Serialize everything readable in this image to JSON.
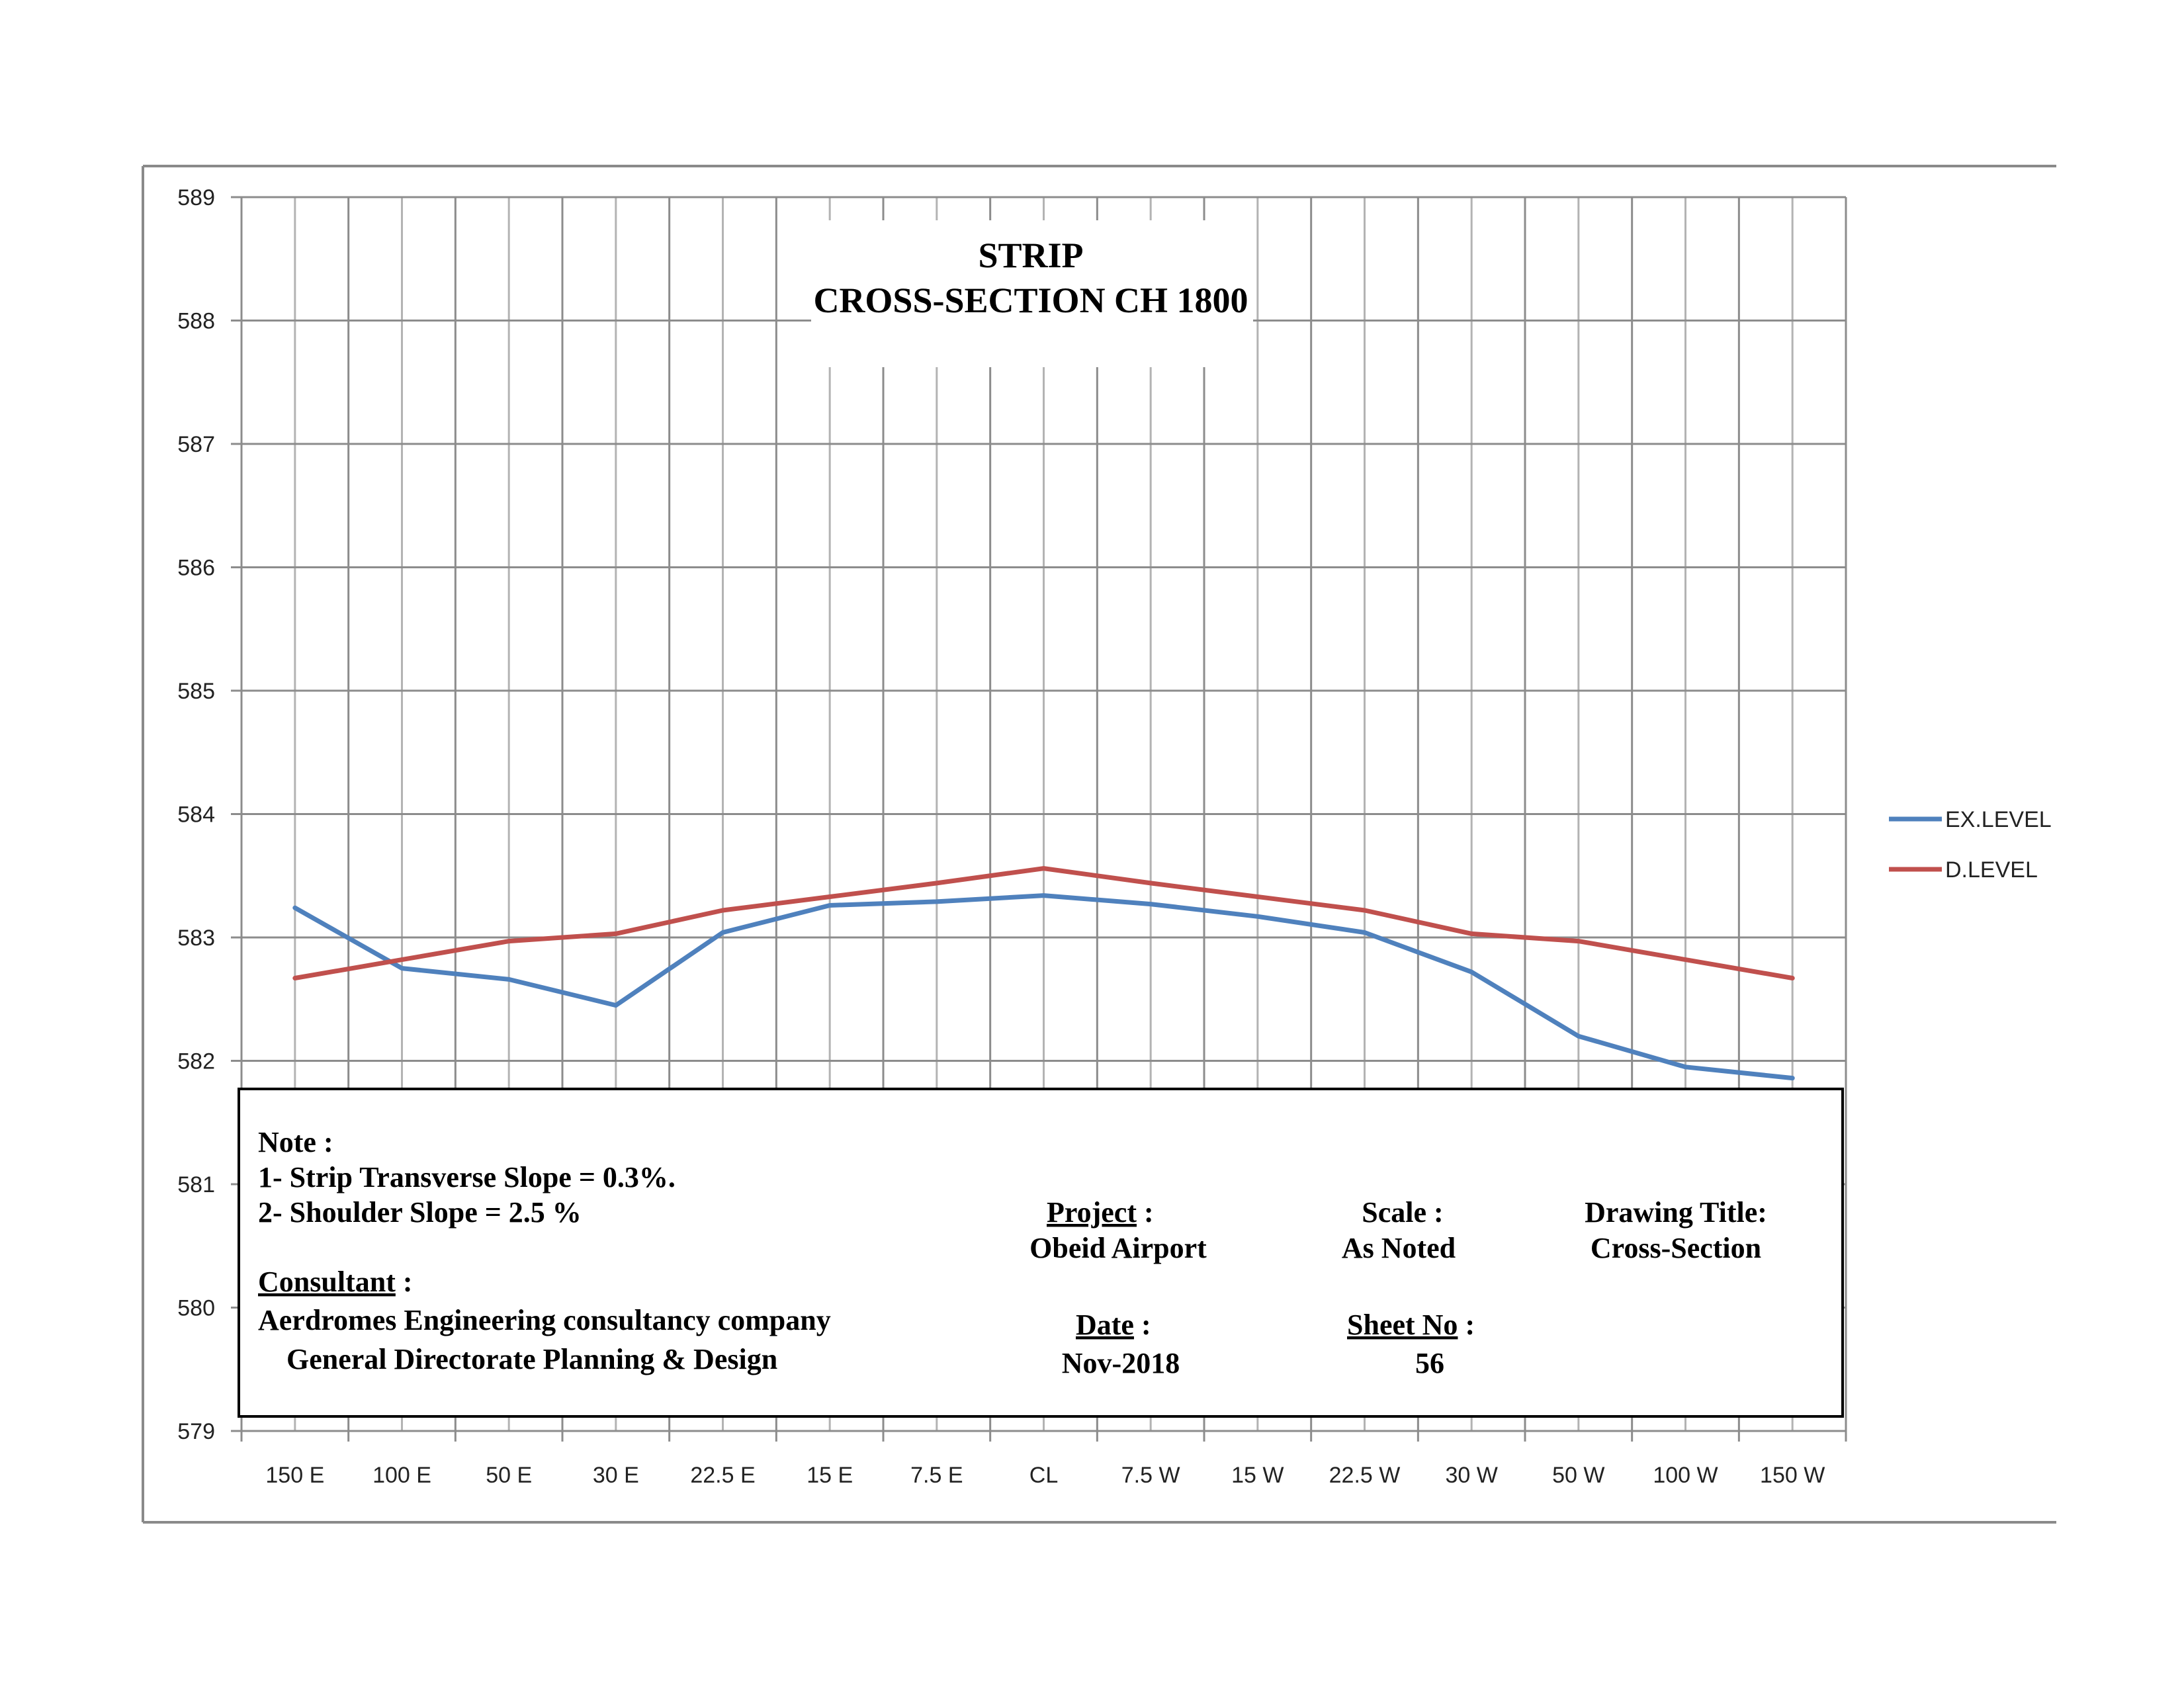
{
  "chart_data": {
    "type": "line",
    "title": [
      "STRIP",
      "CROSS-SECTION CH 1800"
    ],
    "categories": [
      "150 E",
      "100 E",
      "50 E",
      "30 E",
      "22.5 E",
      "15 E",
      "7.5 E",
      "CL",
      "7.5 W",
      "15 W",
      "22.5 W",
      "30 W",
      "50 W",
      "100 W",
      "150 W"
    ],
    "series": [
      {
        "name": "EX.LEVEL",
        "color": "#4F81BD",
        "values": [
          583.24,
          582.75,
          582.66,
          582.45,
          583.04,
          583.26,
          583.29,
          583.34,
          583.27,
          583.17,
          583.04,
          582.72,
          582.2,
          581.95,
          581.86
        ]
      },
      {
        "name": "D.LEVEL",
        "color": "#C0504D",
        "values": [
          582.67,
          582.82,
          582.97,
          583.03,
          583.22,
          583.33,
          583.44,
          583.56,
          583.44,
          583.33,
          583.22,
          583.03,
          582.97,
          582.82,
          582.67
        ]
      }
    ],
    "ylim": [
      579,
      589
    ],
    "yticks": [
      "589",
      "588",
      "587",
      "586",
      "585",
      "584",
      "583",
      "582",
      "581",
      "580",
      "579"
    ],
    "grid": true,
    "legend_position": "right"
  },
  "title_block": {
    "note_label": "Note :",
    "note_1": "1- Strip Transverse Slope = 0.3%.",
    "note_2": "2- Shoulder Slope = 2.5 %",
    "consultant_label": "Consultant",
    "consultant_colon": " :",
    "consultant_line1": "Aerdromes Engineering consultancy company",
    "consultant_line2": "General Directorate Planning & Design",
    "project_label": "Project",
    "project_colon": " :",
    "project_value": "Obeid Airport",
    "scale_label": "Scale :",
    "scale_value": "As Noted",
    "drawing_title_label": "Drawing Title:",
    "drawing_title_value": "Cross-Section",
    "date_label": "Date",
    "date_colon": " :",
    "date_value": "Nov-2018",
    "sheet_label": "Sheet No",
    "sheet_colon": "  :",
    "sheet_value": "56"
  }
}
